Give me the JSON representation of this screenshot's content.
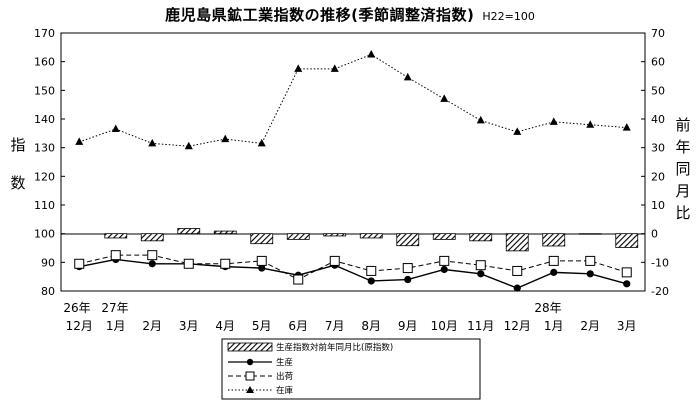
{
  "title": "鹿児島県鉱工業指数の推移(季節調整済指数)",
  "base_note": "H22=100",
  "left_axis_label": [
    "指",
    "数"
  ],
  "right_axis_label": [
    "前",
    "年",
    "同",
    "月",
    "比"
  ],
  "year_labels": [
    "26年",
    "27年",
    "28年"
  ],
  "legend": {
    "bar_label": "生産指数対前年同月比(原指数)",
    "production_label": "生産",
    "shipment_label": "出荷",
    "inventory_label": "在庫"
  },
  "chart_data": {
    "type": "line",
    "categories": [
      "12月",
      "1月",
      "2月",
      "3月",
      "4月",
      "5月",
      "6月",
      "7月",
      "8月",
      "9月",
      "10月",
      "11月",
      "12月",
      "1月",
      "2月",
      "3月"
    ],
    "left_axis": {
      "min": 80,
      "max": 170,
      "step": 10,
      "ticks": [
        80,
        90,
        100,
        110,
        120,
        130,
        140,
        150,
        160,
        170
      ]
    },
    "right_axis": {
      "min": -20,
      "max": 70,
      "step": 10,
      "ticks": [
        -20,
        -10,
        0,
        10,
        20,
        30,
        40,
        50,
        60,
        70
      ]
    },
    "series": [
      {
        "name": "生産",
        "axis": "left",
        "style": "solid-circle",
        "values": [
          88.5,
          91,
          89.5,
          89.5,
          88.5,
          88,
          85.5,
          89,
          83.5,
          84,
          87.5,
          86,
          81,
          86.5,
          86,
          82.5
        ]
      },
      {
        "name": "出荷",
        "axis": "left",
        "style": "dashed-square",
        "values": [
          89.5,
          92.5,
          92.5,
          89.5,
          89.5,
          90.5,
          84,
          90.5,
          87,
          88,
          90.5,
          89,
          87,
          90.5,
          90.5,
          86.5
        ]
      },
      {
        "name": "在庫",
        "axis": "left",
        "style": "dotted-triangle",
        "values": [
          132,
          136.5,
          131.5,
          130.5,
          133,
          131.5,
          157.5,
          157.5,
          162.5,
          154.5,
          147,
          139.5,
          135.5,
          139,
          138,
          137
        ]
      },
      {
        "name": "生産指数対前年同月比(原指数)",
        "axis": "right",
        "style": "hatched-bar",
        "values": [
          0,
          -1.5,
          -2.5,
          1.8,
          0.9,
          -3.5,
          -2,
          -0.8,
          -1.5,
          -4.2,
          -2,
          -2.5,
          -6,
          -4.3,
          -0.2,
          -4.8
        ]
      }
    ]
  }
}
